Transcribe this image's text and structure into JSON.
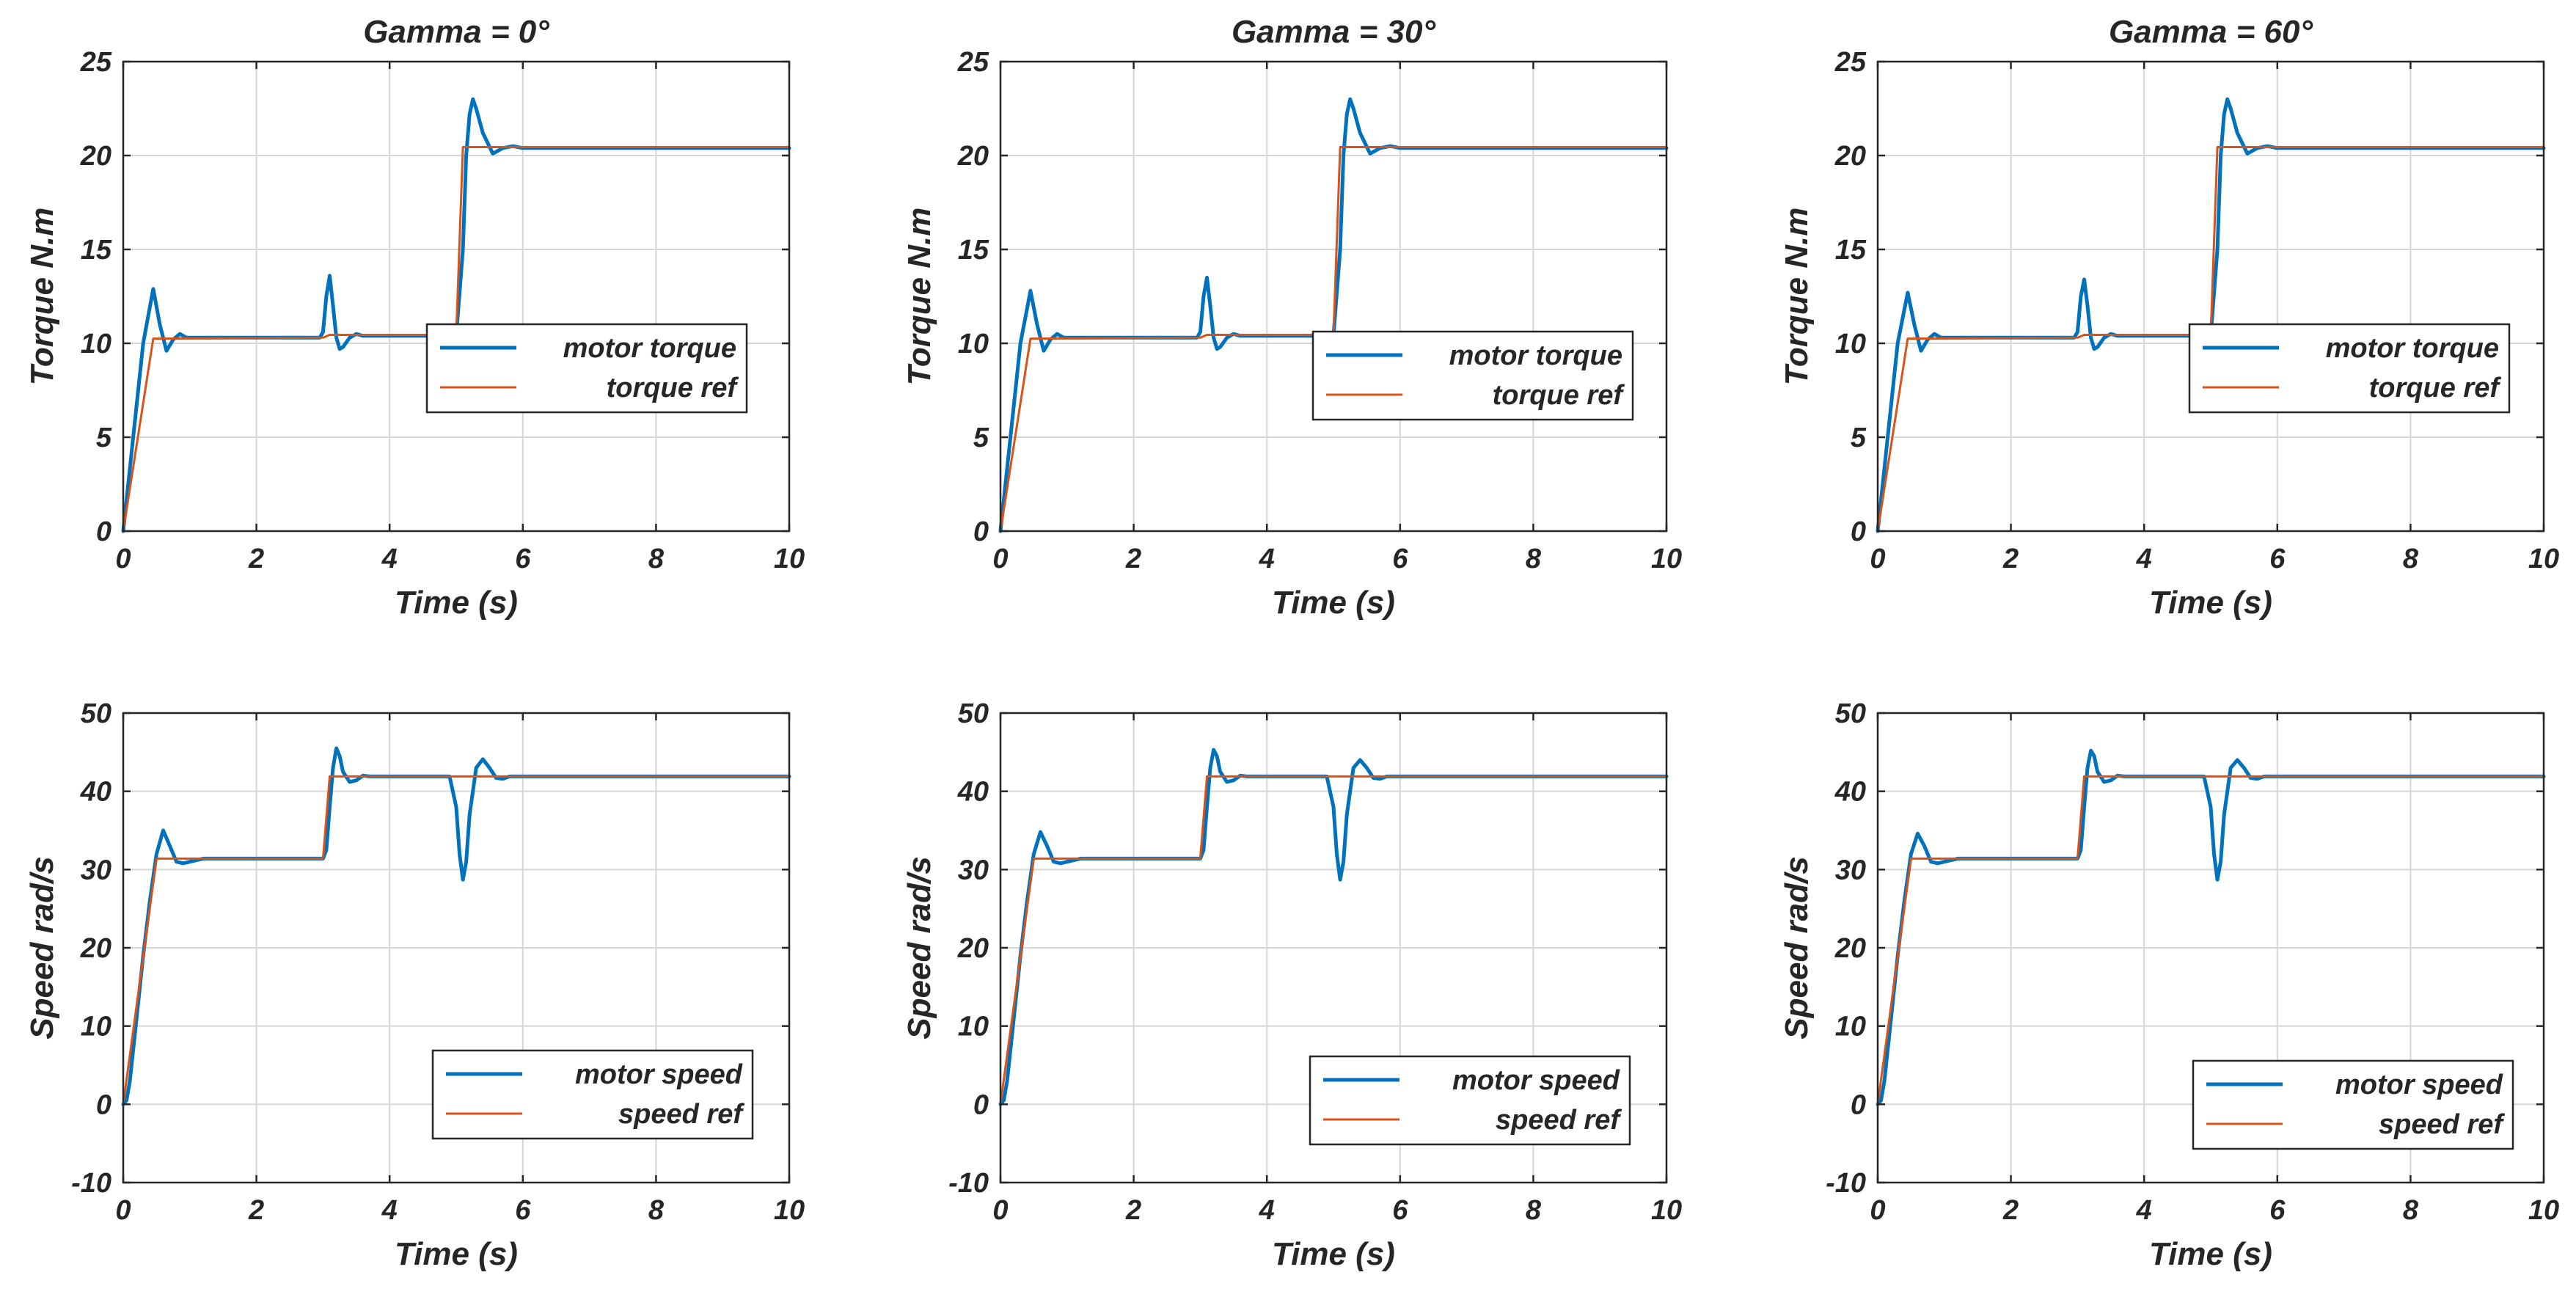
{
  "colors": {
    "motor": "#0072BD",
    "ref": "#D95319",
    "axis": "#262626",
    "grid": "#d6d6d6"
  },
  "chart_data": [
    {
      "id": "torque-g0",
      "type": "line",
      "title": "Gamma = 0°",
      "xlabel": "Time (s)",
      "ylabel": "Torque N.m",
      "xlim": [
        0,
        10
      ],
      "ylim": [
        0,
        25
      ],
      "xticks": [
        "0",
        "2",
        "4",
        "6",
        "8",
        "10"
      ],
      "yticks": [
        "0",
        "5",
        "10",
        "15",
        "20",
        "25"
      ],
      "grid": true,
      "legend_position": "lower-right",
      "series": [
        {
          "name": "motor torque",
          "color": "#0072BD",
          "x": [
            0,
            0.15,
            0.3,
            0.45,
            0.55,
            0.65,
            0.75,
            0.85,
            0.95,
            1.1,
            1.5,
            2.0,
            2.5,
            2.95,
            3.0,
            3.05,
            3.1,
            3.15,
            3.2,
            3.25,
            3.3,
            3.4,
            3.5,
            3.6,
            3.7,
            3.8,
            4.0,
            4.5,
            5.0,
            5.1,
            5.15,
            5.2,
            5.25,
            5.3,
            5.4,
            5.55,
            5.7,
            5.85,
            6.0,
            6.5,
            7,
            8,
            9,
            10
          ],
          "y": [
            0,
            5,
            10,
            12.9,
            11,
            9.6,
            10.2,
            10.5,
            10.3,
            10.3,
            10.3,
            10.3,
            10.3,
            10.3,
            10.6,
            12.5,
            13.6,
            12,
            10.3,
            9.7,
            9.8,
            10.3,
            10.5,
            10.4,
            10.4,
            10.4,
            10.4,
            10.4,
            10.4,
            15,
            20,
            22.2,
            23,
            22.5,
            21.2,
            20.1,
            20.4,
            20.5,
            20.4,
            20.4,
            20.4,
            20.4,
            20.4,
            20.4
          ]
        },
        {
          "name": "torque ref",
          "color": "#D95319",
          "x": [
            0,
            0.45,
            3.0,
            3.1,
            5.0,
            5.1,
            10
          ],
          "y": [
            0,
            10.25,
            10.3,
            10.45,
            10.45,
            20.45,
            20.45
          ]
        }
      ]
    },
    {
      "id": "torque-g30",
      "type": "line",
      "title": "Gamma = 30°",
      "xlabel": "Time (s)",
      "ylabel": "Torque N.m",
      "xlim": [
        0,
        10
      ],
      "ylim": [
        0,
        25
      ],
      "xticks": [
        "0",
        "2",
        "4",
        "6",
        "8",
        "10"
      ],
      "yticks": [
        "0",
        "5",
        "10",
        "15",
        "20",
        "25"
      ],
      "grid": true,
      "legend_position": "lower-right",
      "series": [
        {
          "name": "motor torque",
          "color": "#0072BD",
          "x": [
            0,
            0.15,
            0.3,
            0.45,
            0.55,
            0.65,
            0.75,
            0.85,
            0.95,
            1.1,
            1.5,
            2.0,
            2.5,
            2.95,
            3.0,
            3.05,
            3.1,
            3.15,
            3.2,
            3.25,
            3.3,
            3.4,
            3.5,
            3.6,
            3.7,
            3.8,
            4.0,
            4.5,
            5.0,
            5.1,
            5.15,
            5.2,
            5.25,
            5.3,
            5.4,
            5.55,
            5.7,
            5.85,
            6.0,
            6.5,
            7,
            8,
            9,
            10
          ],
          "y": [
            0,
            5,
            10,
            12.8,
            11,
            9.6,
            10.2,
            10.5,
            10.3,
            10.3,
            10.3,
            10.3,
            10.3,
            10.3,
            10.6,
            12.5,
            13.5,
            12,
            10.3,
            9.7,
            9.8,
            10.3,
            10.5,
            10.4,
            10.4,
            10.4,
            10.4,
            10.4,
            10.4,
            15,
            20,
            22.2,
            23,
            22.5,
            21.2,
            20.1,
            20.4,
            20.5,
            20.4,
            20.4,
            20.4,
            20.4,
            20.4,
            20.4
          ]
        },
        {
          "name": "torque ref",
          "color": "#D95319",
          "x": [
            0,
            0.45,
            3.0,
            3.1,
            5.0,
            5.1,
            10
          ],
          "y": [
            0,
            10.25,
            10.3,
            10.45,
            10.45,
            20.45,
            20.45
          ]
        }
      ]
    },
    {
      "id": "torque-g60",
      "type": "line",
      "title": "Gamma = 60°",
      "xlabel": "Time (s)",
      "ylabel": "Torque N.m",
      "xlim": [
        0,
        10
      ],
      "ylim": [
        0,
        25
      ],
      "xticks": [
        "0",
        "2",
        "4",
        "6",
        "8",
        "10"
      ],
      "yticks": [
        "0",
        "5",
        "10",
        "15",
        "20",
        "25"
      ],
      "grid": true,
      "legend_position": "lower-right",
      "series": [
        {
          "name": "motor torque",
          "color": "#0072BD",
          "x": [
            0,
            0.15,
            0.3,
            0.45,
            0.55,
            0.65,
            0.75,
            0.85,
            0.95,
            1.1,
            1.5,
            2.0,
            2.5,
            2.95,
            3.0,
            3.05,
            3.1,
            3.15,
            3.2,
            3.25,
            3.3,
            3.4,
            3.5,
            3.6,
            3.7,
            3.8,
            4.0,
            4.5,
            5.0,
            5.1,
            5.15,
            5.2,
            5.25,
            5.3,
            5.4,
            5.55,
            5.7,
            5.85,
            6.0,
            6.5,
            7,
            8,
            9,
            10
          ],
          "y": [
            0,
            5,
            10,
            12.7,
            11,
            9.6,
            10.2,
            10.5,
            10.3,
            10.3,
            10.3,
            10.3,
            10.3,
            10.3,
            10.6,
            12.5,
            13.4,
            12,
            10.3,
            9.7,
            9.8,
            10.3,
            10.5,
            10.4,
            10.4,
            10.4,
            10.4,
            10.4,
            10.4,
            15,
            20,
            22.2,
            23,
            22.5,
            21.2,
            20.1,
            20.4,
            20.5,
            20.4,
            20.4,
            20.4,
            20.4,
            20.4,
            20.4
          ]
        },
        {
          "name": "torque ref",
          "color": "#D95319",
          "x": [
            0,
            0.45,
            3.0,
            3.1,
            5.0,
            5.1,
            10
          ],
          "y": [
            0,
            10.25,
            10.3,
            10.45,
            10.45,
            20.45,
            20.45
          ]
        }
      ]
    },
    {
      "id": "speed-g0",
      "type": "line",
      "title": "",
      "xlabel": "Time (s)",
      "ylabel": "Speed rad/s",
      "xlim": [
        0,
        10
      ],
      "ylim": [
        -10,
        50
      ],
      "xticks": [
        "0",
        "2",
        "4",
        "6",
        "8",
        "10"
      ],
      "yticks": [
        "-10",
        "0",
        "10",
        "20",
        "30",
        "40",
        "50"
      ],
      "grid": true,
      "legend_position": "lower-right",
      "series": [
        {
          "name": "motor speed",
          "color": "#0072BD",
          "x": [
            0,
            0.05,
            0.1,
            0.2,
            0.3,
            0.4,
            0.5,
            0.6,
            0.7,
            0.8,
            0.9,
            1.0,
            1.2,
            1.5,
            2.0,
            2.5,
            3.0,
            3.05,
            3.1,
            3.15,
            3.2,
            3.25,
            3.3,
            3.4,
            3.5,
            3.6,
            3.7,
            3.8,
            4.0,
            4.5,
            4.9,
            5.0,
            5.05,
            5.1,
            5.15,
            5.2,
            5.3,
            5.4,
            5.5,
            5.6,
            5.7,
            5.8,
            6.0,
            6.5,
            7,
            8,
            9,
            10
          ],
          "y": [
            0,
            0.5,
            3,
            11,
            19,
            26,
            32,
            35,
            33,
            31,
            30.8,
            31,
            31.4,
            31.4,
            31.4,
            31.4,
            31.4,
            32.5,
            38,
            43,
            45.5,
            44.5,
            42.5,
            41.2,
            41.4,
            42,
            41.9,
            41.9,
            41.9,
            41.9,
            41.9,
            38,
            32,
            28.7,
            31,
            37,
            43,
            44.1,
            43,
            41.7,
            41.6,
            41.9,
            41.9,
            41.9,
            41.9,
            41.9,
            41.9,
            41.9
          ]
        },
        {
          "name": "speed ref",
          "color": "#D95319",
          "x": [
            0,
            0.5,
            3.0,
            3.1,
            10
          ],
          "y": [
            0,
            31.4,
            31.4,
            41.9,
            41.9
          ]
        }
      ]
    },
    {
      "id": "speed-g30",
      "type": "line",
      "title": "",
      "xlabel": "Time (s)",
      "ylabel": "Speed rad/s",
      "xlim": [
        0,
        10
      ],
      "ylim": [
        -10,
        50
      ],
      "xticks": [
        "0",
        "2",
        "4",
        "6",
        "8",
        "10"
      ],
      "yticks": [
        "-10",
        "0",
        "10",
        "20",
        "30",
        "40",
        "50"
      ],
      "grid": true,
      "legend_position": "lower-right",
      "series": [
        {
          "name": "motor speed",
          "color": "#0072BD",
          "x": [
            0,
            0.05,
            0.1,
            0.2,
            0.3,
            0.4,
            0.5,
            0.6,
            0.7,
            0.8,
            0.9,
            1.0,
            1.2,
            1.5,
            2.0,
            2.5,
            3.0,
            3.05,
            3.1,
            3.15,
            3.2,
            3.25,
            3.3,
            3.4,
            3.5,
            3.6,
            3.7,
            3.8,
            4.0,
            4.5,
            4.9,
            5.0,
            5.05,
            5.1,
            5.15,
            5.2,
            5.3,
            5.4,
            5.5,
            5.6,
            5.7,
            5.8,
            6.0,
            6.5,
            7,
            8,
            9,
            10
          ],
          "y": [
            0,
            0.5,
            3,
            11,
            19,
            26,
            32,
            34.8,
            33,
            31,
            30.8,
            31,
            31.4,
            31.4,
            31.4,
            31.4,
            31.4,
            32.5,
            38,
            43,
            45.3,
            44.5,
            42.5,
            41.2,
            41.4,
            42,
            41.9,
            41.9,
            41.9,
            41.9,
            41.9,
            38,
            32,
            28.7,
            31,
            37,
            43,
            44,
            43,
            41.7,
            41.6,
            41.9,
            41.9,
            41.9,
            41.9,
            41.9,
            41.9,
            41.9
          ]
        },
        {
          "name": "speed ref",
          "color": "#D95319",
          "x": [
            0,
            0.5,
            3.0,
            3.1,
            10
          ],
          "y": [
            0,
            31.4,
            31.4,
            41.9,
            41.9
          ]
        }
      ]
    },
    {
      "id": "speed-g60",
      "type": "line",
      "title": "",
      "xlabel": "Time (s)",
      "ylabel": "Speed rad/s",
      "xlim": [
        0,
        10
      ],
      "ylim": [
        -10,
        50
      ],
      "xticks": [
        "0",
        "2",
        "4",
        "6",
        "8",
        "10"
      ],
      "yticks": [
        "-10",
        "0",
        "10",
        "20",
        "30",
        "40",
        "50"
      ],
      "grid": true,
      "legend_position": "lower-right",
      "series": [
        {
          "name": "motor speed",
          "color": "#0072BD",
          "x": [
            0,
            0.05,
            0.1,
            0.2,
            0.3,
            0.4,
            0.5,
            0.6,
            0.7,
            0.8,
            0.9,
            1.0,
            1.2,
            1.5,
            2.0,
            2.5,
            3.0,
            3.05,
            3.1,
            3.15,
            3.2,
            3.25,
            3.3,
            3.4,
            3.5,
            3.6,
            3.7,
            3.8,
            4.0,
            4.5,
            4.9,
            5.0,
            5.05,
            5.1,
            5.15,
            5.2,
            5.3,
            5.4,
            5.5,
            5.6,
            5.7,
            5.8,
            6.0,
            6.5,
            7,
            8,
            9,
            10
          ],
          "y": [
            0,
            0.5,
            3,
            11,
            19,
            26,
            32,
            34.6,
            33,
            31,
            30.8,
            31,
            31.4,
            31.4,
            31.4,
            31.4,
            31.4,
            32.5,
            38,
            43,
            45.2,
            44.5,
            42.5,
            41.2,
            41.4,
            42,
            41.9,
            41.9,
            41.9,
            41.9,
            41.9,
            38,
            32,
            28.7,
            31,
            37,
            43,
            44,
            43,
            41.7,
            41.6,
            41.9,
            41.9,
            41.9,
            41.9,
            41.9,
            41.9,
            41.9
          ]
        },
        {
          "name": "speed ref",
          "color": "#D95319",
          "x": [
            0,
            0.5,
            3.0,
            3.1,
            10
          ],
          "y": [
            0,
            31.4,
            31.4,
            41.9,
            41.9
          ]
        }
      ]
    }
  ]
}
